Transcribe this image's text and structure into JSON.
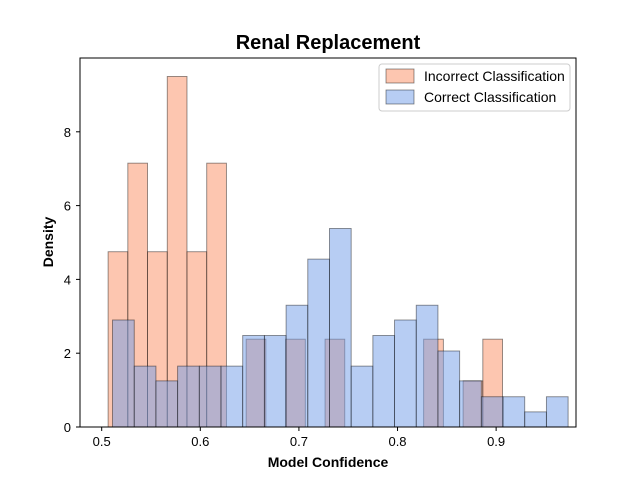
{
  "chart_data": {
    "type": "bar",
    "title": "Renal Replacement",
    "xlabel": "Model Confidence",
    "ylabel": "Density",
    "xlim": [
      0.478,
      0.981
    ],
    "ylim": [
      0,
      10.0
    ],
    "xticks": [
      "0.5",
      "0.6",
      "0.7",
      "0.8",
      "0.9"
    ],
    "xtick_values": [
      0.5,
      0.6,
      0.7,
      0.8,
      0.9
    ],
    "yticks": [
      "0",
      "2",
      "4",
      "6",
      "8"
    ],
    "ytick_values": [
      0,
      2,
      4,
      6,
      8
    ],
    "legend_position": "top-right",
    "grid": false,
    "series": [
      {
        "name": "Incorrect Classification",
        "color": "#fc8d62",
        "bins": [
          {
            "x0": 0.5065,
            "x1": 0.5265,
            "density": 4.75
          },
          {
            "x0": 0.5265,
            "x1": 0.5465,
            "density": 7.15
          },
          {
            "x0": 0.5465,
            "x1": 0.5665,
            "density": 4.75
          },
          {
            "x0": 0.5665,
            "x1": 0.5865,
            "density": 9.5
          },
          {
            "x0": 0.5865,
            "x1": 0.6065,
            "density": 4.75
          },
          {
            "x0": 0.6065,
            "x1": 0.6265,
            "density": 7.15
          },
          {
            "x0": 0.6465,
            "x1": 0.6665,
            "density": 2.38
          },
          {
            "x0": 0.6865,
            "x1": 0.7065,
            "density": 2.38
          },
          {
            "x0": 0.7265,
            "x1": 0.7465,
            "density": 2.38
          },
          {
            "x0": 0.8265,
            "x1": 0.8465,
            "density": 2.38
          },
          {
            "x0": 0.8665,
            "x1": 0.8865,
            "density": 1.25
          },
          {
            "x0": 0.8865,
            "x1": 0.9065,
            "density": 2.38
          }
        ]
      },
      {
        "name": "Correct Classification",
        "color": "#6f9be8",
        "bins": [
          {
            "x0": 0.511,
            "x1": 0.533,
            "density": 2.9
          },
          {
            "x0": 0.533,
            "x1": 0.555,
            "density": 1.65
          },
          {
            "x0": 0.555,
            "x1": 0.577,
            "density": 1.25
          },
          {
            "x0": 0.577,
            "x1": 0.599,
            "density": 1.65
          },
          {
            "x0": 0.599,
            "x1": 0.621,
            "density": 1.65
          },
          {
            "x0": 0.621,
            "x1": 0.643,
            "density": 1.65
          },
          {
            "x0": 0.643,
            "x1": 0.665,
            "density": 2.48
          },
          {
            "x0": 0.665,
            "x1": 0.687,
            "density": 2.48
          },
          {
            "x0": 0.687,
            "x1": 0.709,
            "density": 3.3
          },
          {
            "x0": 0.709,
            "x1": 0.731,
            "density": 4.55
          },
          {
            "x0": 0.731,
            "x1": 0.753,
            "density": 5.38
          },
          {
            "x0": 0.753,
            "x1": 0.775,
            "density": 1.65
          },
          {
            "x0": 0.775,
            "x1": 0.797,
            "density": 2.48
          },
          {
            "x0": 0.797,
            "x1": 0.819,
            "density": 2.9
          },
          {
            "x0": 0.819,
            "x1": 0.841,
            "density": 3.3
          },
          {
            "x0": 0.841,
            "x1": 0.863,
            "density": 2.06
          },
          {
            "x0": 0.863,
            "x1": 0.885,
            "density": 1.25
          },
          {
            "x0": 0.885,
            "x1": 0.907,
            "density": 0.82
          },
          {
            "x0": 0.907,
            "x1": 0.929,
            "density": 0.82
          },
          {
            "x0": 0.929,
            "x1": 0.951,
            "density": 0.41
          },
          {
            "x0": 0.951,
            "x1": 0.973,
            "density": 0.82
          }
        ]
      }
    ]
  }
}
